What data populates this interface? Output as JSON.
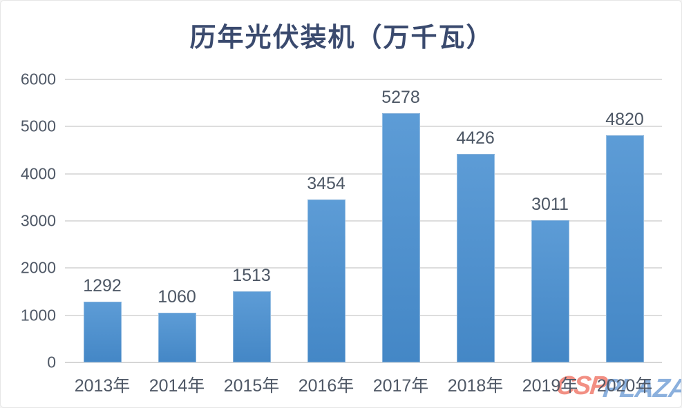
{
  "chart_data": {
    "type": "bar",
    "title": "历年光伏装机（万千瓦）",
    "categories": [
      "2013年",
      "2014年",
      "2015年",
      "2016年",
      "2017年",
      "2018年",
      "2019年",
      "2020年"
    ],
    "values": [
      1292,
      1060,
      1513,
      3454,
      5278,
      4426,
      3011,
      4820
    ],
    "data_labels": [
      "1292",
      "1060",
      "1513",
      "3454",
      "5278",
      "4426",
      "3011",
      "4820"
    ],
    "xlabel": "",
    "ylabel": "",
    "ylim": [
      0,
      6000
    ],
    "yticks": [
      "0",
      "1000",
      "2000",
      "3000",
      "4000",
      "5000",
      "6000"
    ],
    "grid": "horizontal",
    "legend": "none",
    "colors": {
      "bar_top": "#5D9CD6",
      "bar_bottom": "#4487C6",
      "title": "#3A4A6E",
      "data_label": "#4D5765",
      "tick_label": "#4F5866",
      "gridline": "#DDDDDD",
      "axis_line": "#D6D6D6"
    }
  },
  "watermark": {
    "part1": "CSP",
    "part2": "PLAZA",
    "part1_color": "rgba(237,106,90,0.75)",
    "part2_color": "rgba(100,150,210,0.75)"
  }
}
